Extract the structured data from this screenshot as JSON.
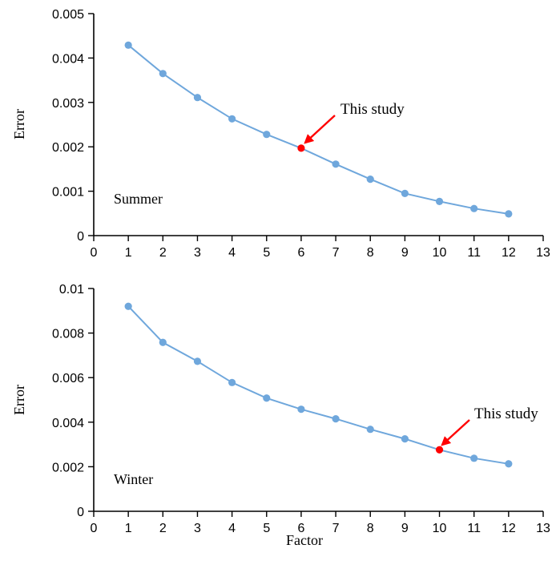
{
  "chart_data": [
    {
      "type": "line",
      "panel_label": "Summer",
      "ylabel": "Error",
      "xlabel": "",
      "xlim": [
        0,
        13
      ],
      "ylim": [
        0,
        0.005
      ],
      "x_ticks": [
        "0",
        "1",
        "2",
        "3",
        "4",
        "5",
        "6",
        "7",
        "8",
        "9",
        "10",
        "11",
        "12",
        "13"
      ],
      "y_ticks": [
        "0",
        "0.001",
        "0.002",
        "0.003",
        "0.004",
        "0.005"
      ],
      "x": [
        1,
        2,
        3,
        4,
        5,
        6,
        7,
        8,
        9,
        10,
        11,
        12
      ],
      "values": [
        0.00429,
        0.00365,
        0.00311,
        0.00263,
        0.00228,
        0.00197,
        0.00161,
        0.00127,
        0.00095,
        0.00077,
        0.00061,
        0.00049
      ],
      "highlight": {
        "x": 6,
        "y": 0.00197,
        "label": "This study"
      },
      "line_color": "#6fa7dc",
      "highlight_color": "#ff0000"
    },
    {
      "type": "line",
      "panel_label": "Winter",
      "ylabel": "Error",
      "xlabel": "Factor",
      "xlim": [
        0,
        13
      ],
      "ylim": [
        0,
        0.01
      ],
      "x_ticks": [
        "0",
        "1",
        "2",
        "3",
        "4",
        "5",
        "6",
        "7",
        "8",
        "9",
        "10",
        "11",
        "12",
        "13"
      ],
      "y_ticks": [
        "0",
        "0.002",
        "0.004",
        "0.006",
        "0.008",
        "0.01"
      ],
      "x": [
        1,
        2,
        3,
        4,
        5,
        6,
        7,
        8,
        9,
        10,
        11,
        12
      ],
      "values": [
        0.0092,
        0.00758,
        0.00673,
        0.00578,
        0.00508,
        0.00458,
        0.00415,
        0.00368,
        0.00325,
        0.00276,
        0.00238,
        0.00213
      ],
      "highlight": {
        "x": 10,
        "y": 0.00276,
        "label": "This study"
      },
      "line_color": "#6fa7dc",
      "highlight_color": "#ff0000"
    }
  ]
}
